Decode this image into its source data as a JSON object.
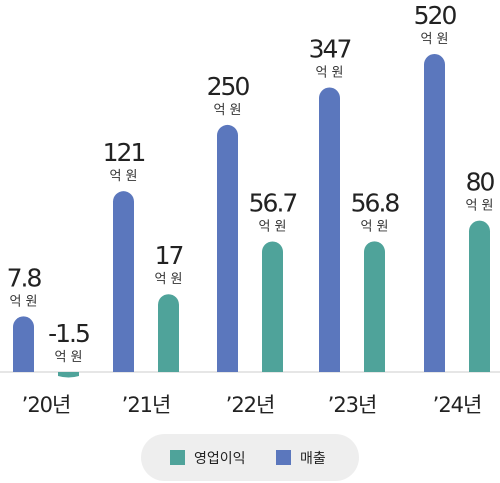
{
  "chart_data": {
    "type": "bar",
    "categories": [
      "’20년",
      "’21년",
      "’22년",
      "’23년",
      "’24년"
    ],
    "unit": "억 원",
    "series": [
      {
        "name": "매출",
        "color": "#5b77bd",
        "values": [
          7.8,
          121,
          250,
          347,
          520
        ],
        "labels": [
          "7.8",
          "121",
          "250",
          "347",
          "520"
        ]
      },
      {
        "name": "영업이익",
        "color": "#4fa39a",
        "values": [
          -1.5,
          17,
          56.7,
          56.8,
          80
        ],
        "labels": [
          "-1.5",
          "17",
          "56.7",
          "56.8",
          "80"
        ]
      }
    ],
    "axis_scale": "non-linear"
  },
  "legend": {
    "items": [
      "영업이익",
      "매출"
    ]
  },
  "colors": {
    "legend_bg": "#eeeeee",
    "baseline": "#cccccc",
    "text": "#222222"
  }
}
